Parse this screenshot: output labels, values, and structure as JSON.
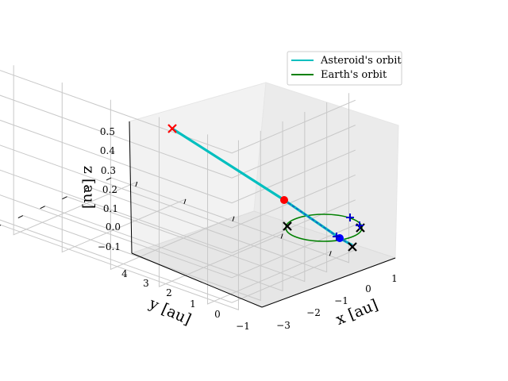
{
  "chart_data": {
    "type": "line",
    "projection": "3d",
    "xlabel": "x [au]",
    "ylabel": "y [au]",
    "zlabel": "z [au]",
    "x_ticks": [
      "−3",
      "−2",
      "−1",
      "0",
      "1"
    ],
    "y_ticks": [
      "−1",
      "0",
      "1",
      "2",
      "3",
      "4"
    ],
    "z_ticks": [
      "−0.1",
      "0.0",
      "0.1",
      "0.2",
      "0.3",
      "0.4",
      "0.5"
    ],
    "xlim": [
      -3.4,
      1.5
    ],
    "ylim": [
      -1.3,
      4.3
    ],
    "zlim": [
      -0.14,
      0.54
    ],
    "grid": true,
    "legend_position": "top-right",
    "series": [
      {
        "name": "Asteroid's orbit",
        "color": "#00bfbf",
        "x": [
          -2.38,
          -1.8,
          -1.2,
          -0.6,
          -0.1,
          0.35,
          0.7
        ],
        "y": [
          4.0,
          3.0,
          2.0,
          1.0,
          0.35,
          -0.25,
          -0.7
        ],
        "z": [
          0.5,
          0.37,
          0.24,
          0.11,
          0.03,
          -0.03,
          -0.07
        ]
      },
      {
        "name": "Earth's orbit",
        "color": "#008000",
        "shape": "circle",
        "center": [
          0,
          0,
          0
        ],
        "radius": 1.0
      }
    ],
    "markers": [
      {
        "name": "asteroid-start",
        "label": "",
        "x": -2.38,
        "y": 4.0,
        "z": 0.5,
        "color": "#ff0000",
        "symbol": "x"
      },
      {
        "name": "red-dot",
        "label": "",
        "x": -0.74,
        "y": 1.15,
        "z": 0.1,
        "color": "#ff0000",
        "symbol": "o"
      },
      {
        "name": "blue-dot",
        "label": "",
        "x": 0.25,
        "y": -0.12,
        "z": -0.02,
        "color": "#0000ff",
        "symbol": "o"
      },
      {
        "name": "black-x-left",
        "label": "",
        "x": -0.55,
        "y": 0.85,
        "z": 0.0,
        "color": "#000000",
        "symbol": "x"
      },
      {
        "name": "black-x-right",
        "label": "",
        "x": 0.85,
        "y": -0.55,
        "z": 0.0,
        "color": "#000000",
        "symbol": "x"
      },
      {
        "name": "black-x-bottom",
        "label": "",
        "x": 0.68,
        "y": -0.72,
        "z": -0.07,
        "color": "#000000",
        "symbol": "x"
      },
      {
        "name": "blue-plus-top",
        "label": "",
        "x": 0.8,
        "y": 0.6,
        "z": 0.0,
        "color": "#0000cc",
        "symbol": "+"
      },
      {
        "name": "blue-plus-right",
        "label": "",
        "x": 0.9,
        "y": -0.4,
        "z": 0.0,
        "color": "#0000cc",
        "symbol": "+"
      },
      {
        "name": "blue-plus-bottom",
        "label": "",
        "x": 0.55,
        "y": -0.6,
        "z": -0.05,
        "color": "#0000cc",
        "symbol": "+"
      }
    ]
  }
}
